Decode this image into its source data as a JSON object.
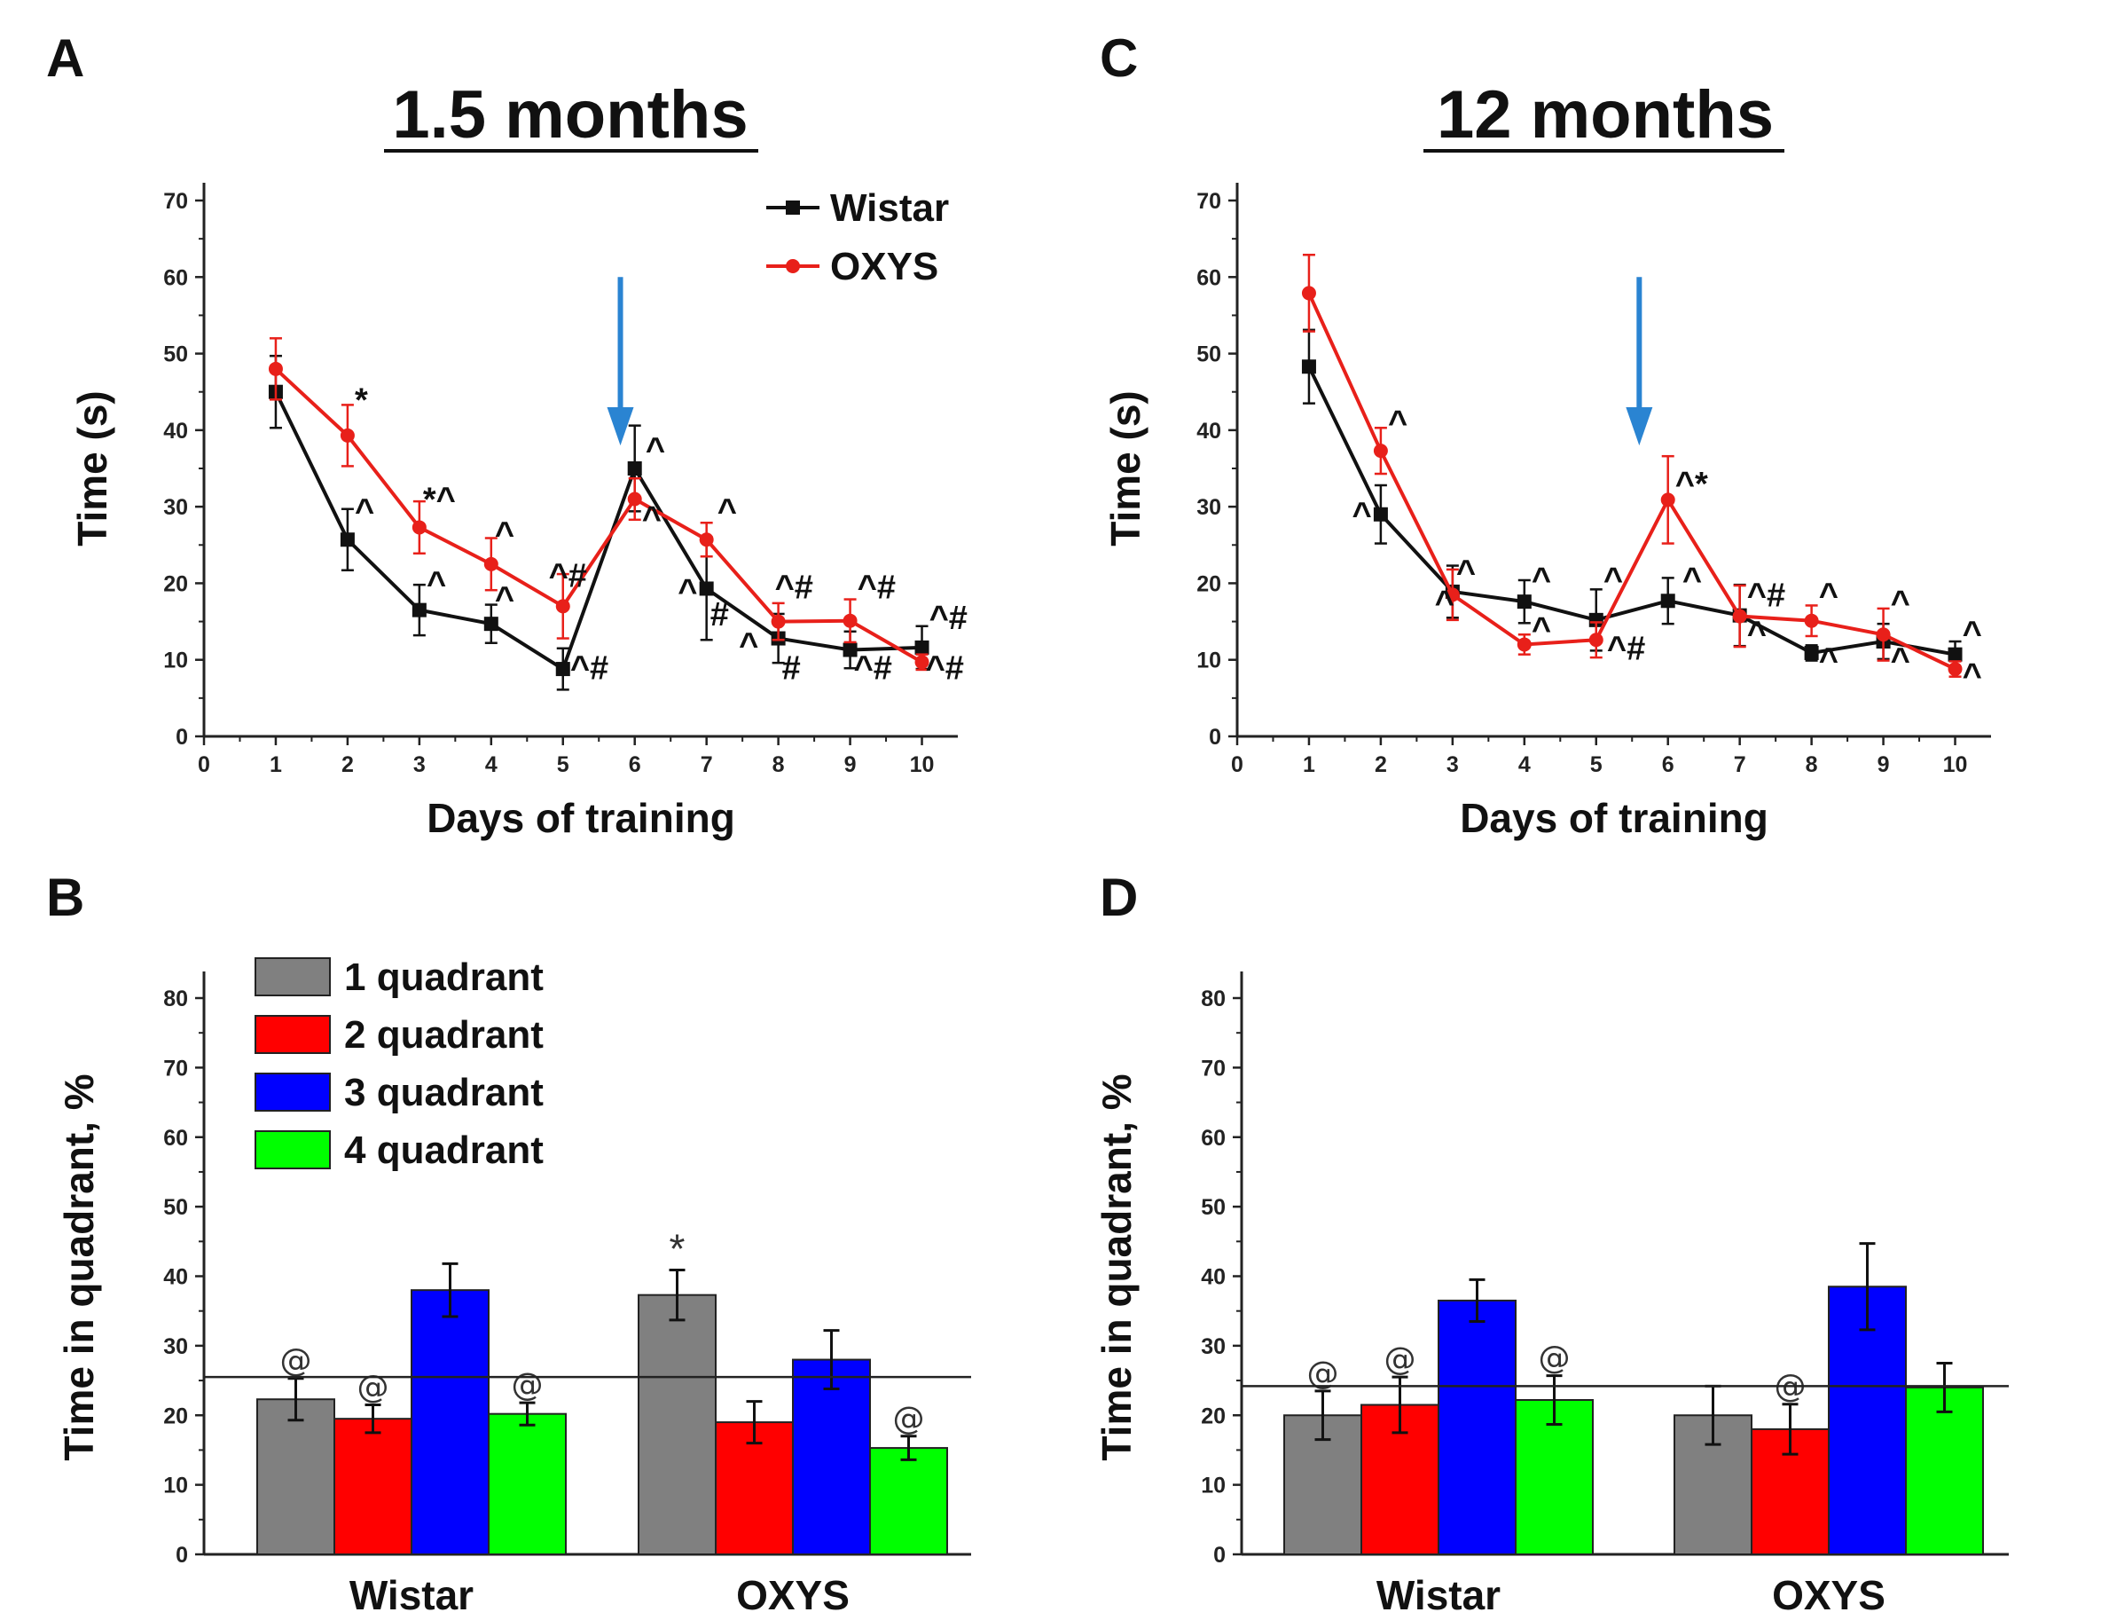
{
  "colors": {
    "wistar": "#111111",
    "oxys": "#e8201a",
    "arrow": "#2a84d2",
    "q1": "#808080",
    "q2": "#ff0000",
    "q3": "#0000ff",
    "q4": "#00ff00"
  },
  "chart_data": [
    {
      "panel": "A",
      "type": "line",
      "title": "1.5 months",
      "xlabel": "Days of training",
      "ylabel": "Time (s)",
      "xlim": [
        0,
        10.5
      ],
      "ylim": [
        0,
        70
      ],
      "xticks": [
        "0",
        "1",
        "2",
        "3",
        "4",
        "5",
        "6",
        "7",
        "8",
        "9",
        "10"
      ],
      "yticks": [
        "0",
        "10",
        "20",
        "30",
        "40",
        "50",
        "60",
        "70"
      ],
      "legend": [
        "Wistar",
        "OXYS"
      ],
      "legend_position": "top-right",
      "arrow_day": 5.8,
      "series": [
        {
          "name": "Wistar",
          "x": [
            1,
            2,
            3,
            4,
            5,
            6,
            7,
            8,
            9,
            10
          ],
          "y": [
            45,
            25.7,
            16.5,
            14.7,
            8.8,
            35,
            19.3,
            12.8,
            11.3,
            11.6
          ],
          "err": [
            4.7,
            4,
            3.3,
            2.5,
            2.7,
            5.6,
            6.7,
            3.2,
            2.4,
            2.8
          ]
        },
        {
          "name": "OXYS",
          "x": [
            1,
            2,
            3,
            4,
            5,
            6,
            7,
            8,
            9,
            10
          ],
          "y": [
            48,
            39.3,
            27.3,
            22.5,
            17,
            31,
            25.7,
            15,
            15.1,
            9.7
          ],
          "err": [
            4,
            4,
            3.4,
            3.4,
            4.2,
            2.7,
            2.2,
            2.4,
            2.8,
            1
          ]
        }
      ],
      "annotations": [
        {
          "text": "*",
          "x": 2.1,
          "y": 42.5
        },
        {
          "text": "*^",
          "x": 3.05,
          "y": 29.5
        },
        {
          "text": "^",
          "x": 4.05,
          "y": 25
        },
        {
          "text": "^#",
          "x": 4.8,
          "y": 19.5
        },
        {
          "text": "^",
          "x": 6.15,
          "y": 36
        },
        {
          "text": "^",
          "x": 7.15,
          "y": 28
        },
        {
          "text": "^#",
          "x": 7.95,
          "y": 18
        },
        {
          "text": "^#",
          "x": 9.1,
          "y": 18
        },
        {
          "text": "^#",
          "x": 10.1,
          "y": 14
        },
        {
          "text": "^",
          "x": 2.1,
          "y": 28
        },
        {
          "text": "^",
          "x": 3.1,
          "y": 18.5
        },
        {
          "text": "^",
          "x": 4.05,
          "y": 16.5
        },
        {
          "text": "^#",
          "x": 5.1,
          "y": 7.5
        },
        {
          "text": "^",
          "x": 6.1,
          "y": 27
        },
        {
          "text": "^",
          "x": 6.6,
          "y": 17.5
        },
        {
          "text": "#",
          "x": 7.05,
          "y": 14.5
        },
        {
          "text": "^",
          "x": 7.45,
          "y": 10.5
        },
        {
          "text": "#",
          "x": 8.05,
          "y": 7.5
        },
        {
          "text": "^#",
          "x": 9.05,
          "y": 7.5
        },
        {
          "text": "^#",
          "x": 10.05,
          "y": 7.5
        }
      ]
    },
    {
      "panel": "C",
      "type": "line",
      "title": "12 months",
      "xlabel": "Days of training",
      "ylabel": "Time (s)",
      "xlim": [
        0,
        10.5
      ],
      "ylim": [
        0,
        70
      ],
      "xticks": [
        "0",
        "1",
        "2",
        "3",
        "4",
        "5",
        "6",
        "7",
        "8",
        "9",
        "10"
      ],
      "yticks": [
        "0",
        "10",
        "20",
        "30",
        "40",
        "50",
        "60",
        "70"
      ],
      "arrow_day": 5.6,
      "series": [
        {
          "name": "Wistar",
          "x": [
            1,
            2,
            3,
            4,
            5,
            6,
            7,
            8,
            9,
            10
          ],
          "y": [
            48.3,
            29,
            18.9,
            17.6,
            15.2,
            17.7,
            15.8,
            10.9,
            12.4,
            10.7
          ],
          "err": [
            4.8,
            3.8,
            3.4,
            2.8,
            4,
            3,
            4,
            1,
            2.3,
            1.7
          ]
        },
        {
          "name": "OXYS",
          "x": [
            1,
            2,
            3,
            4,
            5,
            6,
            7,
            8,
            9,
            10
          ],
          "y": [
            57.9,
            37.3,
            18.5,
            12,
            12.6,
            30.9,
            15.7,
            15.1,
            13.3,
            8.8
          ],
          "err": [
            5,
            3,
            3.3,
            1.3,
            2.3,
            5.7,
            4,
            2,
            3.4,
            1
          ]
        }
      ],
      "annotations": [
        {
          "text": "^",
          "x": 2.1,
          "y": 39.5
        },
        {
          "text": "^*",
          "x": 6.1,
          "y": 31.5
        },
        {
          "text": "^",
          "x": 1.6,
          "y": 27.5
        },
        {
          "text": "^",
          "x": 3.05,
          "y": 20
        },
        {
          "text": "^",
          "x": 2.75,
          "y": 16
        },
        {
          "text": "^",
          "x": 4.1,
          "y": 19
        },
        {
          "text": "^",
          "x": 4.1,
          "y": 12.5
        },
        {
          "text": "^",
          "x": 5.1,
          "y": 19
        },
        {
          "text": "^#",
          "x": 5.15,
          "y": 10
        },
        {
          "text": "^",
          "x": 6.2,
          "y": 19
        },
        {
          "text": "^#",
          "x": 7.1,
          "y": 17
        },
        {
          "text": "^",
          "x": 7.1,
          "y": 12
        },
        {
          "text": "^",
          "x": 8.1,
          "y": 17
        },
        {
          "text": "^",
          "x": 8.1,
          "y": 8.5
        },
        {
          "text": "^",
          "x": 9.1,
          "y": 16
        },
        {
          "text": "^",
          "x": 9.1,
          "y": 8.5
        },
        {
          "text": "^",
          "x": 10.1,
          "y": 12
        },
        {
          "text": "^",
          "x": 10.1,
          "y": 6.5
        }
      ]
    },
    {
      "panel": "B",
      "type": "bar",
      "categories": [
        "Wistar",
        "OXYS"
      ],
      "ylabel": "Time in quadrant, %",
      "ylim": [
        0,
        80
      ],
      "yticks": [
        "0",
        "10",
        "20",
        "30",
        "40",
        "50",
        "60",
        "70",
        "80"
      ],
      "reference_line": 25.5,
      "legend": [
        "1 quadrant",
        "2 quadrant",
        "3 quadrant",
        "4 quadrant"
      ],
      "legend_position": "top-left",
      "series": [
        {
          "name": "1 quadrant",
          "values": [
            22.3,
            37.3
          ],
          "err": [
            3,
            3.6
          ],
          "marks": [
            "@",
            "*"
          ]
        },
        {
          "name": "2 quadrant",
          "values": [
            19.5,
            19
          ],
          "err": [
            2,
            3
          ],
          "marks": [
            "@",
            ""
          ]
        },
        {
          "name": "3 quadrant",
          "values": [
            38,
            28
          ],
          "err": [
            3.8,
            4.2
          ],
          "marks": [
            "",
            ""
          ]
        },
        {
          "name": "4 quadrant",
          "values": [
            20.2,
            15.3
          ],
          "err": [
            1.6,
            1.7
          ],
          "marks": [
            "@",
            "@"
          ]
        }
      ]
    },
    {
      "panel": "D",
      "type": "bar",
      "categories": [
        "Wistar",
        "OXYS"
      ],
      "ylabel": "Time in quadrant, %",
      "ylim": [
        0,
        80
      ],
      "yticks": [
        "0",
        "10",
        "20",
        "30",
        "40",
        "50",
        "60",
        "70",
        "80"
      ],
      "reference_line": 24.2,
      "series": [
        {
          "name": "1 quadrant",
          "values": [
            20,
            20
          ],
          "err": [
            3.5,
            4.2
          ],
          "marks": [
            "@",
            ""
          ]
        },
        {
          "name": "2 quadrant",
          "values": [
            21.5,
            18
          ],
          "err": [
            4,
            3.6
          ],
          "marks": [
            "@",
            "@"
          ]
        },
        {
          "name": "3 quadrant",
          "values": [
            36.5,
            38.5
          ],
          "err": [
            3,
            6.2
          ],
          "marks": [
            "",
            ""
          ]
        },
        {
          "name": "4 quadrant",
          "values": [
            22.2,
            24
          ],
          "err": [
            3.5,
            3.5
          ],
          "marks": [
            "@",
            ""
          ]
        }
      ]
    }
  ]
}
